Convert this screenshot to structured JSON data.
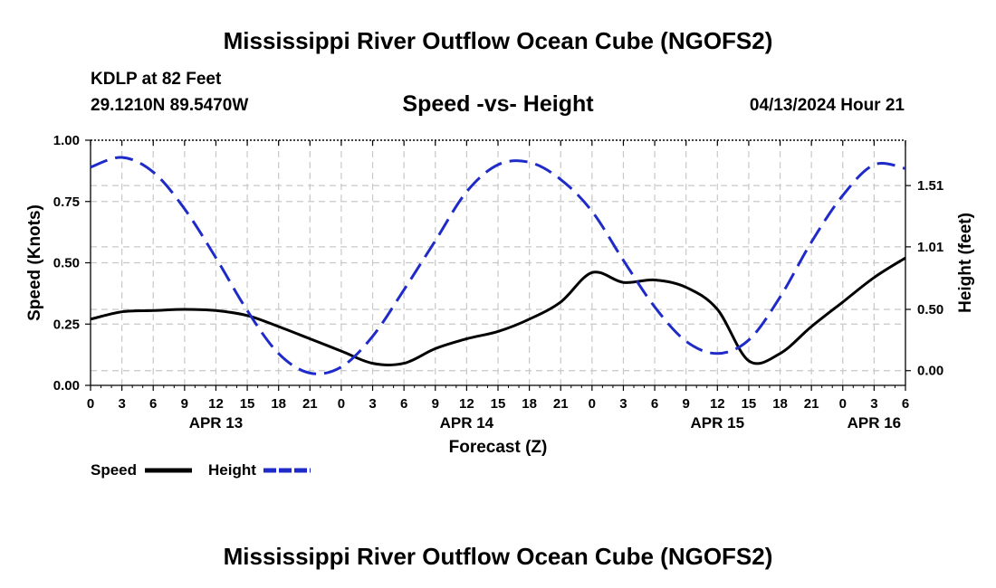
{
  "page": {
    "title": "Mississippi River Outflow Ocean Cube (NGOFS2)",
    "footer_title": "Mississippi River Outflow Ocean Cube (NGOFS2)",
    "station": "KDLP at 82 Feet",
    "coords": "29.1210N  89.5470W",
    "subtitle": "Speed -vs- Height",
    "datetime": "04/13/2024 Hour 21"
  },
  "chart_data": {
    "type": "line",
    "xlabel": "Forecast (Z)",
    "ylabel": "Speed (Knots)",
    "ylabel_right": "Height (feet)",
    "ylim": [
      0,
      1.0
    ],
    "ylim_right": [
      -0.12,
      1.88
    ],
    "xlim": [
      0,
      78
    ],
    "x_tick_labels": [
      "0",
      "3",
      "6",
      "9",
      "12",
      "15",
      "18",
      "21",
      "0",
      "3",
      "6",
      "9",
      "12",
      "15",
      "18",
      "21",
      "0",
      "3",
      "6",
      "9",
      "12",
      "15",
      "18",
      "21",
      "0",
      "3",
      "6"
    ],
    "day_labels": [
      {
        "label": "APR 13",
        "x": 12
      },
      {
        "label": "APR 14",
        "x": 36
      },
      {
        "label": "APR 15",
        "x": 60
      },
      {
        "label": "APR 16",
        "x": 75
      }
    ],
    "y_ticks": [
      "0.00",
      "0.25",
      "0.50",
      "0.75",
      "1.00"
    ],
    "y_ticks_right": [
      "0.00",
      "0.50",
      "1.01",
      "1.51"
    ],
    "series": [
      {
        "name": "Speed",
        "color": "#000000",
        "axis": "left",
        "style": "solid",
        "x": [
          0,
          3,
          6,
          9,
          12,
          15,
          18,
          21,
          24,
          27,
          30,
          33,
          36,
          39,
          42,
          45,
          48,
          51,
          54,
          57,
          60,
          63,
          66,
          69,
          72,
          75,
          78
        ],
        "values": [
          0.27,
          0.3,
          0.305,
          0.31,
          0.305,
          0.285,
          0.24,
          0.19,
          0.14,
          0.09,
          0.09,
          0.15,
          0.19,
          0.22,
          0.27,
          0.34,
          0.46,
          0.42,
          0.43,
          0.4,
          0.31,
          0.1,
          0.13,
          0.24,
          0.34,
          0.44,
          0.52
        ]
      },
      {
        "name": "Height",
        "color": "#1f2bc8",
        "axis": "right",
        "style": "dashed",
        "x": [
          0,
          3,
          6,
          9,
          12,
          15,
          18,
          21,
          24,
          27,
          30,
          33,
          36,
          39,
          42,
          45,
          48,
          51,
          54,
          57,
          60,
          63,
          66,
          69,
          72,
          75,
          78
        ],
        "values": [
          1.66,
          1.74,
          1.62,
          1.32,
          0.92,
          0.49,
          0.14,
          -0.02,
          0.03,
          0.28,
          0.66,
          1.06,
          1.46,
          1.68,
          1.7,
          1.56,
          1.3,
          0.9,
          0.52,
          0.24,
          0.14,
          0.25,
          0.6,
          1.05,
          1.43,
          1.68,
          1.65
        ]
      }
    ]
  }
}
